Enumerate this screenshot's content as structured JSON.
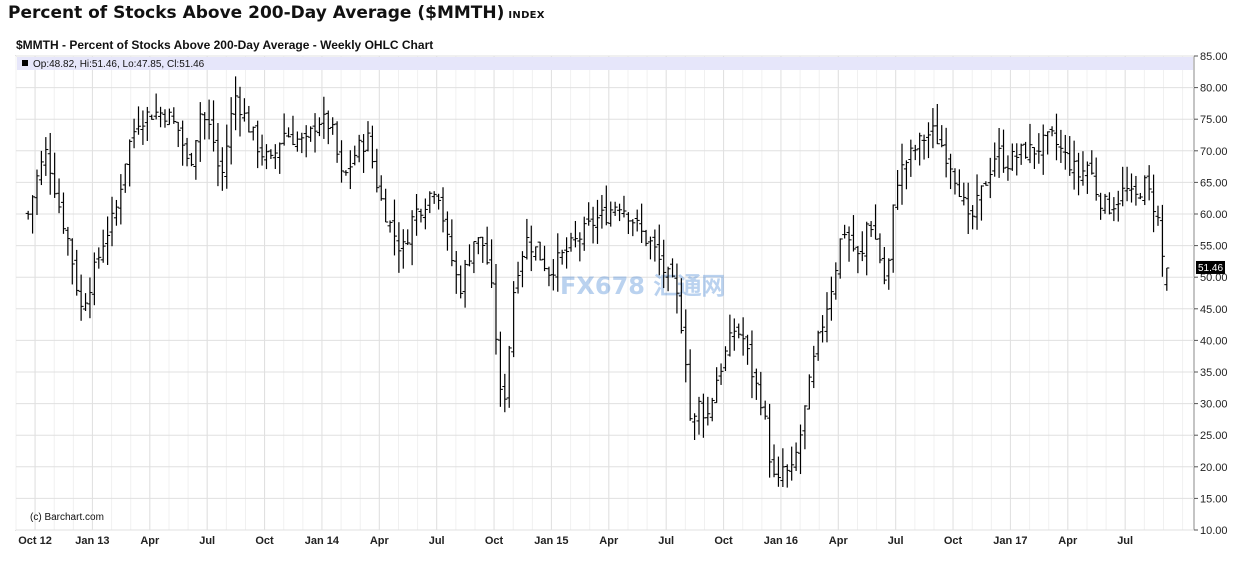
{
  "header": {
    "title": "Percent of Stocks Above 200-Day Average ($MMTH)",
    "tag": "INDEX"
  },
  "chart_data": {
    "type": "ohlc",
    "title": "$MMTH - Percent of Stocks Above 200-Day Average - Weekly OHLC Chart",
    "legend_text": "Op:48.82, Hi:51.46, Lo:47.85, Cl:51.46",
    "last_value_label": "51.46",
    "credit": "(c) Barchart.com",
    "watermark": "FX678 汇通网",
    "ylim": [
      10,
      85
    ],
    "y_ticks": [
      "85.00",
      "80.00",
      "75.00",
      "70.00",
      "65.00",
      "60.00",
      "55.00",
      "50.00",
      "45.00",
      "40.00",
      "35.00",
      "30.00",
      "25.00",
      "20.00",
      "15.00",
      "10.00"
    ],
    "x_labels": [
      "Oct 12",
      "Jan 13",
      "Apr",
      "Jul",
      "Oct",
      "Jan 14",
      "Apr",
      "Jul",
      "Oct",
      "Jan 15",
      "Apr",
      "Jul",
      "Oct",
      "Jan 16",
      "Apr",
      "Jul",
      "Oct",
      "Jan 17",
      "Apr",
      "Jul"
    ],
    "grid": true,
    "bar_color": "#000000",
    "legend_bg": "#e6e6fa",
    "close_path": [
      [
        2012.72,
        60
      ],
      [
        2012.76,
        66
      ],
      [
        2012.8,
        70
      ],
      [
        2012.85,
        62
      ],
      [
        2012.9,
        55
      ],
      [
        2012.95,
        45
      ],
      [
        2013.0,
        50
      ],
      [
        2013.05,
        56
      ],
      [
        2013.1,
        60
      ],
      [
        2013.15,
        70
      ],
      [
        2013.2,
        75
      ],
      [
        2013.26,
        76
      ],
      [
        2013.32,
        76
      ],
      [
        2013.38,
        73
      ],
      [
        2013.42,
        67
      ],
      [
        2013.47,
        76
      ],
      [
        2013.52,
        73
      ],
      [
        2013.56,
        65
      ],
      [
        2013.62,
        79
      ],
      [
        2013.68,
        74
      ],
      [
        2013.73,
        70
      ],
      [
        2013.78,
        68
      ],
      [
        2013.83,
        73
      ],
      [
        2013.88,
        72
      ],
      [
        2013.93,
        71
      ],
      [
        2013.98,
        75
      ],
      [
        2014.04,
        74
      ],
      [
        2014.09,
        65
      ],
      [
        2014.15,
        70
      ],
      [
        2014.2,
        72
      ],
      [
        2014.25,
        63
      ],
      [
        2014.3,
        58
      ],
      [
        2014.35,
        54
      ],
      [
        2014.4,
        60
      ],
      [
        2014.45,
        62
      ],
      [
        2014.5,
        65
      ],
      [
        2014.55,
        55
      ],
      [
        2014.6,
        48
      ],
      [
        2014.66,
        56
      ],
      [
        2014.71,
        55
      ],
      [
        2014.75,
        45
      ],
      [
        2014.78,
        30
      ],
      [
        2014.8,
        32
      ],
      [
        2014.84,
        50
      ],
      [
        2014.89,
        56
      ],
      [
        2014.94,
        54
      ],
      [
        2014.99,
        51
      ],
      [
        2015.04,
        53
      ],
      [
        2015.09,
        55
      ],
      [
        2015.14,
        57
      ],
      [
        2015.19,
        59
      ],
      [
        2015.24,
        60
      ],
      [
        2015.29,
        62
      ],
      [
        2015.34,
        60
      ],
      [
        2015.39,
        57
      ],
      [
        2015.44,
        55
      ],
      [
        2015.49,
        51
      ],
      [
        2015.54,
        48
      ],
      [
        2015.58,
        40
      ],
      [
        2015.61,
        25
      ],
      [
        2015.64,
        30
      ],
      [
        2015.68,
        28
      ],
      [
        2015.72,
        34
      ],
      [
        2015.76,
        38
      ],
      [
        2015.8,
        42
      ],
      [
        2015.84,
        40
      ],
      [
        2015.88,
        34
      ],
      [
        2015.92,
        30
      ],
      [
        2015.95,
        22
      ],
      [
        2015.98,
        16
      ],
      [
        2016.01,
        20
      ],
      [
        2016.04,
        18
      ],
      [
        2016.08,
        24
      ],
      [
        2016.11,
        30
      ],
      [
        2016.15,
        38
      ],
      [
        2016.19,
        44
      ],
      [
        2016.23,
        50
      ],
      [
        2016.27,
        58
      ],
      [
        2016.31,
        55
      ],
      [
        2016.35,
        52
      ],
      [
        2016.38,
        60
      ],
      [
        2016.42,
        55
      ],
      [
        2016.46,
        48
      ],
      [
        2016.5,
        65
      ],
      [
        2016.54,
        68
      ],
      [
        2016.58,
        70
      ],
      [
        2016.62,
        72
      ],
      [
        2016.66,
        73
      ],
      [
        2016.7,
        71
      ],
      [
        2016.74,
        68
      ],
      [
        2016.78,
        64
      ],
      [
        2016.82,
        58
      ],
      [
        2016.86,
        62
      ],
      [
        2016.9,
        66
      ],
      [
        2016.94,
        70
      ],
      [
        2016.98,
        68
      ],
      [
        2017.02,
        69
      ],
      [
        2017.06,
        70
      ],
      [
        2017.1,
        70
      ],
      [
        2017.14,
        71
      ],
      [
        2017.18,
        72
      ],
      [
        2017.22,
        70
      ],
      [
        2017.26,
        68
      ],
      [
        2017.3,
        66
      ],
      [
        2017.34,
        68
      ],
      [
        2017.38,
        63
      ],
      [
        2017.42,
        61
      ],
      [
        2017.46,
        62
      ],
      [
        2017.5,
        64
      ],
      [
        2017.54,
        62
      ],
      [
        2017.58,
        65
      ],
      [
        2017.62,
        62
      ],
      [
        2017.65,
        58
      ],
      [
        2017.67,
        50
      ],
      [
        2017.69,
        51.46
      ]
    ]
  }
}
